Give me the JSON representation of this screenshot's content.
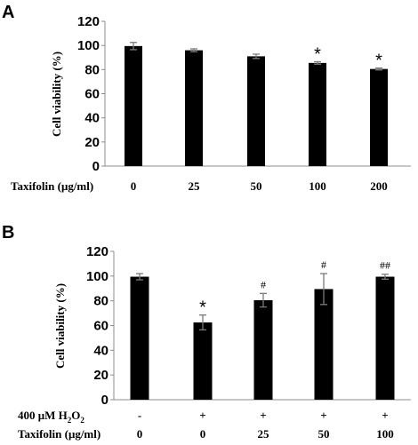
{
  "chart_data": [
    {
      "type": "bar",
      "panel": "A",
      "xlabel": "Taxifolin (μg/ml)",
      "ylabel": "Cell viability (%)",
      "ylim": [
        0,
        120
      ],
      "yticks": [
        0,
        20,
        40,
        60,
        80,
        100,
        120
      ],
      "categories": [
        "0",
        "25",
        "50",
        "100",
        "200"
      ],
      "values": [
        99.5,
        96,
        91,
        85.5,
        80.5
      ],
      "errors": [
        3,
        1.2,
        1.8,
        1.0,
        0.8
      ],
      "annotations": [
        "",
        "",
        "",
        "*",
        "*"
      ],
      "bar_color": "#000000",
      "grid": false
    },
    {
      "type": "bar",
      "panel": "B",
      "xlabel": "Taxifolin (μg/ml)",
      "ylabel": "Cell viability (%)",
      "ylim": [
        0,
        120
      ],
      "yticks": [
        0,
        20,
        40,
        60,
        80,
        100,
        120
      ],
      "categories": [
        "0",
        "0",
        "25",
        "50",
        "100"
      ],
      "treatment_row": {
        "label": "400 μM H",
        "label_sub": "2",
        "label_tail": "O",
        "label_tail_sub": "2",
        "values": [
          "-",
          "+",
          "+",
          "+",
          "+"
        ]
      },
      "values": [
        99.5,
        62.5,
        80.5,
        89.5,
        99.5
      ],
      "errors": [
        2.5,
        6,
        5.5,
        12.5,
        2
      ],
      "annotations": [
        "",
        "*",
        "#",
        "#",
        "##"
      ],
      "bar_color": "#000000",
      "grid": false
    }
  ]
}
